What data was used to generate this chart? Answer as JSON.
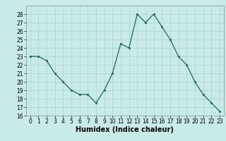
{
  "x": [
    0,
    1,
    2,
    3,
    4,
    5,
    6,
    7,
    8,
    9,
    10,
    11,
    12,
    13,
    14,
    15,
    16,
    17,
    18,
    19,
    20,
    21,
    22,
    23
  ],
  "y": [
    23,
    23,
    22.5,
    21,
    20,
    19,
    18.5,
    18.5,
    17.5,
    19,
    21,
    24.5,
    24,
    28,
    27,
    28,
    26.5,
    25,
    23,
    22,
    20,
    18.5,
    17.5,
    16.5
  ],
  "line_color": "#1a6b5a",
  "marker": "s",
  "marker_size": 2,
  "bg_color": "#c8ebe8",
  "grid_color": "#a8d4d0",
  "xlabel": "Humidex (Indice chaleur)",
  "xlim": [
    -0.5,
    23.5
  ],
  "ylim": [
    16,
    29
  ],
  "yticks": [
    16,
    17,
    18,
    19,
    20,
    21,
    22,
    23,
    24,
    25,
    26,
    27,
    28
  ],
  "xticks": [
    0,
    1,
    2,
    3,
    4,
    5,
    6,
    7,
    8,
    9,
    10,
    11,
    12,
    13,
    14,
    15,
    16,
    17,
    18,
    19,
    20,
    21,
    22,
    23
  ],
  "tick_labelsize": 5.5,
  "xlabel_fontsize": 7
}
